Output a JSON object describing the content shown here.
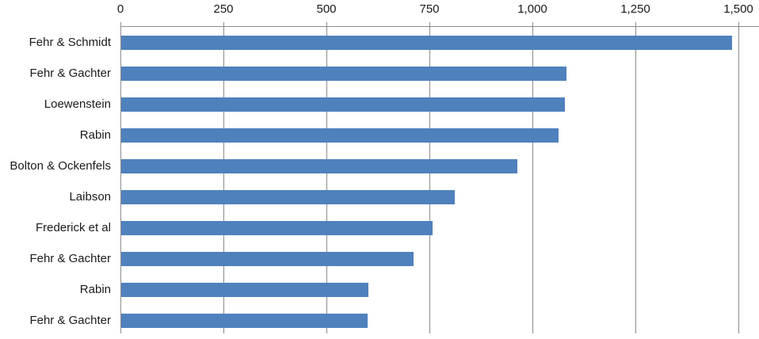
{
  "chart_data": {
    "type": "bar",
    "orientation": "horizontal",
    "title": "",
    "categories": [
      "Fehr & Schmidt",
      "Fehr & Gachter",
      "Loewenstein",
      "Rabin",
      "Bolton & Ockenfels",
      "Laibson",
      "Frederick et al",
      "Fehr & Gachter",
      "Rabin",
      "Fehr & Gachter"
    ],
    "values": [
      1483,
      1081,
      1077,
      1062,
      961,
      810,
      756,
      710,
      600,
      598
    ],
    "x_axis": {
      "position": "top",
      "tick_labels": [
        "0",
        "250",
        "500",
        "750",
        "1,000",
        "1,250",
        "1,500"
      ],
      "tick_values": [
        0,
        250,
        500,
        750,
        1000,
        1250,
        1500
      ],
      "min": 0,
      "max": 1550
    },
    "ylabel": "",
    "xlabel": "",
    "grid": true,
    "legend": false,
    "colors": {
      "bar": "#4F81BD",
      "gridline": "#8C8C8C",
      "axis": "#8C8C8C",
      "text": "#1A1A1A",
      "background": "#FFFFFF"
    }
  }
}
